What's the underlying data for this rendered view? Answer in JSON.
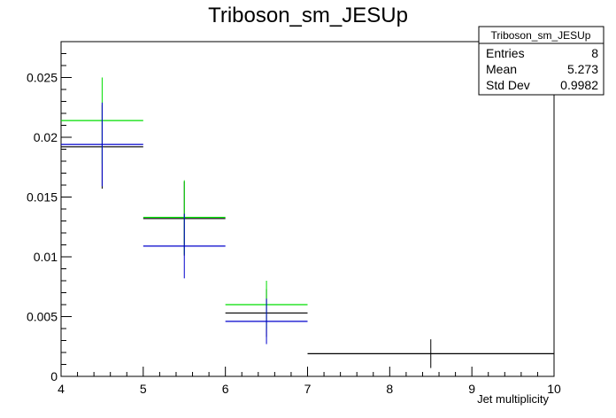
{
  "chart_data": {
    "type": "line",
    "title": "Triboson_sm_JESUp",
    "xlabel": "Jet multiplicity",
    "ylabel": "",
    "xlim": [
      4,
      10
    ],
    "ylim": [
      0,
      0.028
    ],
    "x_ticks": [
      "4",
      "5",
      "6",
      "7",
      "8",
      "9",
      "10"
    ],
    "y_ticks": [
      "0",
      "0.005",
      "0.01",
      "0.015",
      "0.02",
      "0.025"
    ],
    "series": [
      {
        "color": "#000000",
        "points": [
          {
            "xlo": 4,
            "xhi": 5,
            "x": 4.5,
            "y": 0.0192,
            "err": 0.0035
          },
          {
            "xlo": 5,
            "xhi": 6,
            "x": 5.5,
            "y": 0.0132,
            "err": 0.0031
          },
          {
            "xlo": 6,
            "xhi": 7,
            "x": 6.5,
            "y": 0.0053,
            "err": 0.002
          },
          {
            "xlo": 7,
            "xhi": 10,
            "x": 8.5,
            "y": 0.0019,
            "err": 0.0012
          }
        ]
      },
      {
        "color": "#00dd00",
        "points": [
          {
            "xlo": 4,
            "xhi": 5,
            "x": 4.5,
            "y": 0.0214,
            "err": 0.0036
          },
          {
            "xlo": 5,
            "xhi": 6,
            "x": 5.5,
            "y": 0.0133,
            "err": 0.0031
          },
          {
            "xlo": 6,
            "xhi": 7,
            "x": 6.5,
            "y": 0.006,
            "err": 0.002
          }
        ]
      },
      {
        "color": "#0000cc",
        "points": [
          {
            "xlo": 4,
            "xhi": 5,
            "x": 4.5,
            "y": 0.0194,
            "err": 0.0035
          },
          {
            "xlo": 5,
            "xhi": 6,
            "x": 5.5,
            "y": 0.0109,
            "err": 0.0027
          },
          {
            "xlo": 6,
            "xhi": 7,
            "x": 6.5,
            "y": 0.0046,
            "err": 0.0019
          }
        ]
      }
    ]
  },
  "stats": {
    "title": "Triboson_sm_JESUp",
    "rows": [
      {
        "label": "Entries",
        "value": "8"
      },
      {
        "label": "Mean",
        "value": "5.273"
      },
      {
        "label": "Std Dev",
        "value": "0.9982"
      }
    ]
  }
}
